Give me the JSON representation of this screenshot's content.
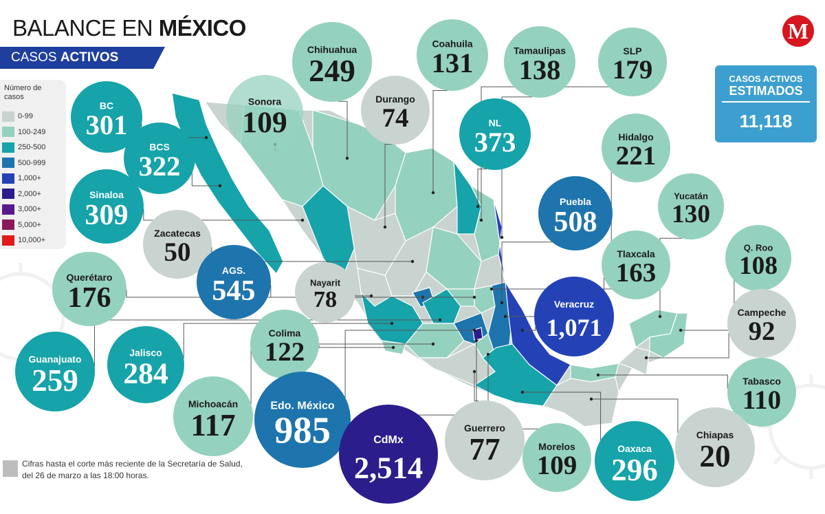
{
  "header": {
    "title_part1": "BALANCE EN",
    "title_part2": "MÉXICO",
    "subtitle_part1": "CASOS",
    "subtitle_part2": "ACTIVOS"
  },
  "logo": {
    "letter": "M"
  },
  "legend": {
    "title": "Número de casos",
    "items": [
      {
        "label": "0-99",
        "color": "#c9d3d0"
      },
      {
        "label": "100-249",
        "color": "#95d1bf"
      },
      {
        "label": "250-500",
        "color": "#16a3a9"
      },
      {
        "label": "500-999",
        "color": "#1e74ad"
      },
      {
        "label": "1,000+",
        "color": "#2442b6"
      },
      {
        "label": "2,000+",
        "color": "#2b1d8c"
      },
      {
        "label": "3,000+",
        "color": "#571a8b"
      },
      {
        "label": "5,000+",
        "color": "#8a1a5a"
      },
      {
        "label": "10,000+",
        "color": "#e01a1a"
      }
    ]
  },
  "estimated": {
    "label_line1": "CASOS ACTIVOS",
    "label_line2": "ESTIMADOS",
    "value": "11,118"
  },
  "footnote": "Cifras hasta el corte más reciente de la Secretaría de Salud, del 26 de marzo a las 18:00 horas.",
  "colors": {
    "map_base": "#c9d3d0",
    "leader_line": "#555555",
    "text_dark": "#1a1a1a",
    "text_light": "#ffffff"
  },
  "chart_data": {
    "type": "bubble_map",
    "title": "BALANCE EN MÉXICO",
    "subtitle": "CASOS ACTIVOS",
    "series": [
      {
        "name": "Casos activos",
        "categories": [
          "BC",
          "BCS",
          "Sonora",
          "Chihuahua",
          "Coahuila",
          "Durango",
          "Tamaulipas",
          "SLP",
          "NL",
          "Hidalgo",
          "Sinaloa",
          "Zacatecas",
          "Puebla",
          "Yucatán",
          "AGS.",
          "Querétaro",
          "Nayarit",
          "Tlaxcala",
          "Q. Roo",
          "Veracruz",
          "Campeche",
          "Colima",
          "Guanajuato",
          "Jalisco",
          "Tabasco",
          "Michoacán",
          "Edo. México",
          "CdMx",
          "Guerrero",
          "Morelos",
          "Oaxaca",
          "Chiapas"
        ],
        "values": [
          301,
          322,
          109,
          249,
          131,
          74,
          138,
          179,
          373,
          221,
          309,
          50,
          508,
          130,
          545,
          176,
          78,
          163,
          108,
          1071,
          92,
          122,
          259,
          284,
          110,
          117,
          985,
          2514,
          77,
          109,
          296,
          20
        ],
        "labels": [
          "301",
          "322",
          "109",
          "249",
          "131",
          "74",
          "138",
          "179",
          "373",
          "221",
          "309",
          "50",
          "508",
          "130",
          "545",
          "176",
          "78",
          "163",
          "108",
          "1,071",
          "92",
          "122",
          "259",
          "284",
          "110",
          "117",
          "985",
          "2,514",
          "77",
          "109",
          "296",
          "20"
        ]
      }
    ],
    "color_scale": [
      "0-99",
      "100-249",
      "250-500",
      "500-999",
      "1,000+",
      "2,000+",
      "3,000+",
      "5,000+",
      "10,000+"
    ]
  }
}
